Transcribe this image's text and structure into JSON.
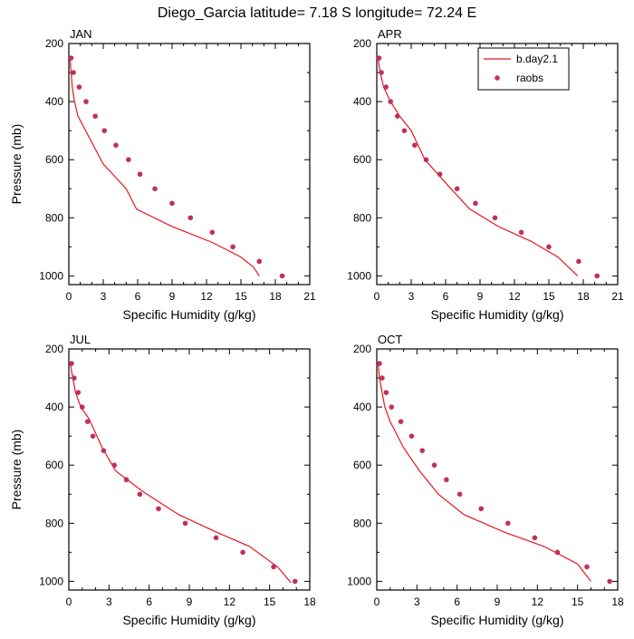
{
  "page": {
    "title": "Diego_Garcia  latitude= 7.18 S longitude= 72.24 E"
  },
  "colors": {
    "model_line": "#e8161d",
    "obs_marker": "#c0305e",
    "axis": "#000000",
    "background": "#ffffff"
  },
  "legend": {
    "model_label": "b.day2.1",
    "obs_label": "raobs",
    "placement": "top-right of APR panel"
  },
  "chart_data": [
    {
      "type": "line",
      "panel": "JAN",
      "xlabel": "Specific Humidity (g/kg)",
      "ylabel": "Pressure (mb)",
      "xlim": [
        0,
        21
      ],
      "ylim": [
        200,
        1030
      ],
      "y_inverted": true,
      "x_ticks": [
        0,
        3,
        6,
        9,
        12,
        15,
        18,
        21
      ],
      "y_ticks": [
        200,
        400,
        600,
        800,
        1000
      ],
      "grid": false,
      "series": [
        {
          "name": "b.day2.1",
          "kind": "line",
          "x": [
            0.1,
            0.2,
            0.3,
            0.5,
            0.8,
            3.0,
            5.0,
            5.9,
            9.0,
            12.5,
            15.0,
            16.1,
            16.6
          ],
          "y": [
            250,
            300,
            350,
            400,
            450,
            615,
            700,
            770,
            830,
            885,
            935,
            970,
            1000
          ]
        },
        {
          "name": "raobs",
          "kind": "scatter",
          "x": [
            0.2,
            0.4,
            0.9,
            1.5,
            2.3,
            3.1,
            4.1,
            5.2,
            6.2,
            7.5,
            9.0,
            10.6,
            12.5,
            14.3,
            16.6,
            18.6
          ],
          "y": [
            250,
            300,
            350,
            400,
            450,
            500,
            550,
            600,
            650,
            700,
            750,
            800,
            850,
            900,
            950,
            1000
          ]
        }
      ]
    },
    {
      "type": "line",
      "panel": "APR",
      "xlabel": "Specific Humidity (g/kg)",
      "ylabel": "",
      "xlim": [
        0,
        21
      ],
      "ylim": [
        200,
        1030
      ],
      "y_inverted": true,
      "x_ticks": [
        0,
        3,
        6,
        9,
        12,
        15,
        18,
        21
      ],
      "y_ticks": [
        200,
        400,
        600,
        800,
        1000
      ],
      "grid": false,
      "series": [
        {
          "name": "b.day2.1",
          "kind": "line",
          "x": [
            0.1,
            0.3,
            0.6,
            1.2,
            2.0,
            3.0,
            4.2,
            6.0,
            8.1,
            10.6,
            13.4,
            15.8,
            17.5
          ],
          "y": [
            250,
            300,
            350,
            400,
            450,
            500,
            600,
            680,
            770,
            830,
            880,
            935,
            1000
          ]
        },
        {
          "name": "raobs",
          "kind": "scatter",
          "x": [
            0.2,
            0.4,
            0.8,
            1.2,
            1.8,
            2.4,
            3.3,
            4.3,
            5.5,
            7.0,
            8.6,
            10.3,
            12.6,
            15.0,
            17.6,
            19.2
          ],
          "y": [
            250,
            300,
            350,
            400,
            450,
            500,
            550,
            600,
            650,
            700,
            750,
            800,
            850,
            900,
            950,
            1000
          ]
        }
      ]
    },
    {
      "type": "line",
      "panel": "JUL",
      "xlabel": "Specific Humidity (g/kg)",
      "ylabel": "Pressure (mb)",
      "xlim": [
        0,
        18
      ],
      "ylim": [
        200,
        1030
      ],
      "y_inverted": true,
      "x_ticks": [
        0,
        3,
        6,
        9,
        12,
        15,
        18
      ],
      "y_ticks": [
        200,
        400,
        600,
        800,
        1000
      ],
      "grid": false,
      "series": [
        {
          "name": "b.day2.1",
          "kind": "line",
          "x": [
            0.1,
            0.3,
            0.5,
            0.9,
            1.5,
            2.5,
            3.5,
            5.5,
            8.2,
            11.0,
            13.5,
            15.6,
            16.6
          ],
          "y": [
            250,
            300,
            350,
            400,
            440,
            540,
            620,
            690,
            770,
            830,
            880,
            950,
            1005
          ]
        },
        {
          "name": "raobs",
          "kind": "scatter",
          "x": [
            0.2,
            0.4,
            0.7,
            1.0,
            1.4,
            1.8,
            2.6,
            3.4,
            4.3,
            5.3,
            6.7,
            8.7,
            11.0,
            13.0,
            15.3,
            16.9
          ],
          "y": [
            250,
            300,
            350,
            400,
            450,
            500,
            550,
            600,
            650,
            700,
            750,
            800,
            850,
            900,
            950,
            1000
          ]
        }
      ]
    },
    {
      "type": "line",
      "panel": "OCT",
      "xlabel": "Specific Humidity (g/kg)",
      "ylabel": "",
      "xlim": [
        0,
        18
      ],
      "ylim": [
        200,
        1030
      ],
      "y_inverted": true,
      "x_ticks": [
        0,
        3,
        6,
        9,
        12,
        15,
        18
      ],
      "y_ticks": [
        200,
        400,
        600,
        800,
        1000
      ],
      "grid": false,
      "series": [
        {
          "name": "b.day2.1",
          "kind": "line",
          "x": [
            0.1,
            0.2,
            0.4,
            0.6,
            1.0,
            2.0,
            3.2,
            4.6,
            6.5,
            9.5,
            12.5,
            15.0,
            16.0
          ],
          "y": [
            250,
            300,
            350,
            400,
            450,
            540,
            620,
            700,
            770,
            830,
            880,
            940,
            1000
          ]
        },
        {
          "name": "raobs",
          "kind": "scatter",
          "x": [
            0.2,
            0.4,
            0.7,
            1.1,
            1.8,
            2.6,
            3.4,
            4.3,
            5.2,
            6.2,
            7.8,
            9.8,
            11.8,
            13.5,
            15.7,
            17.4
          ],
          "y": [
            250,
            300,
            350,
            400,
            450,
            500,
            550,
            600,
            650,
            700,
            750,
            800,
            850,
            900,
            950,
            1000
          ]
        }
      ]
    }
  ]
}
